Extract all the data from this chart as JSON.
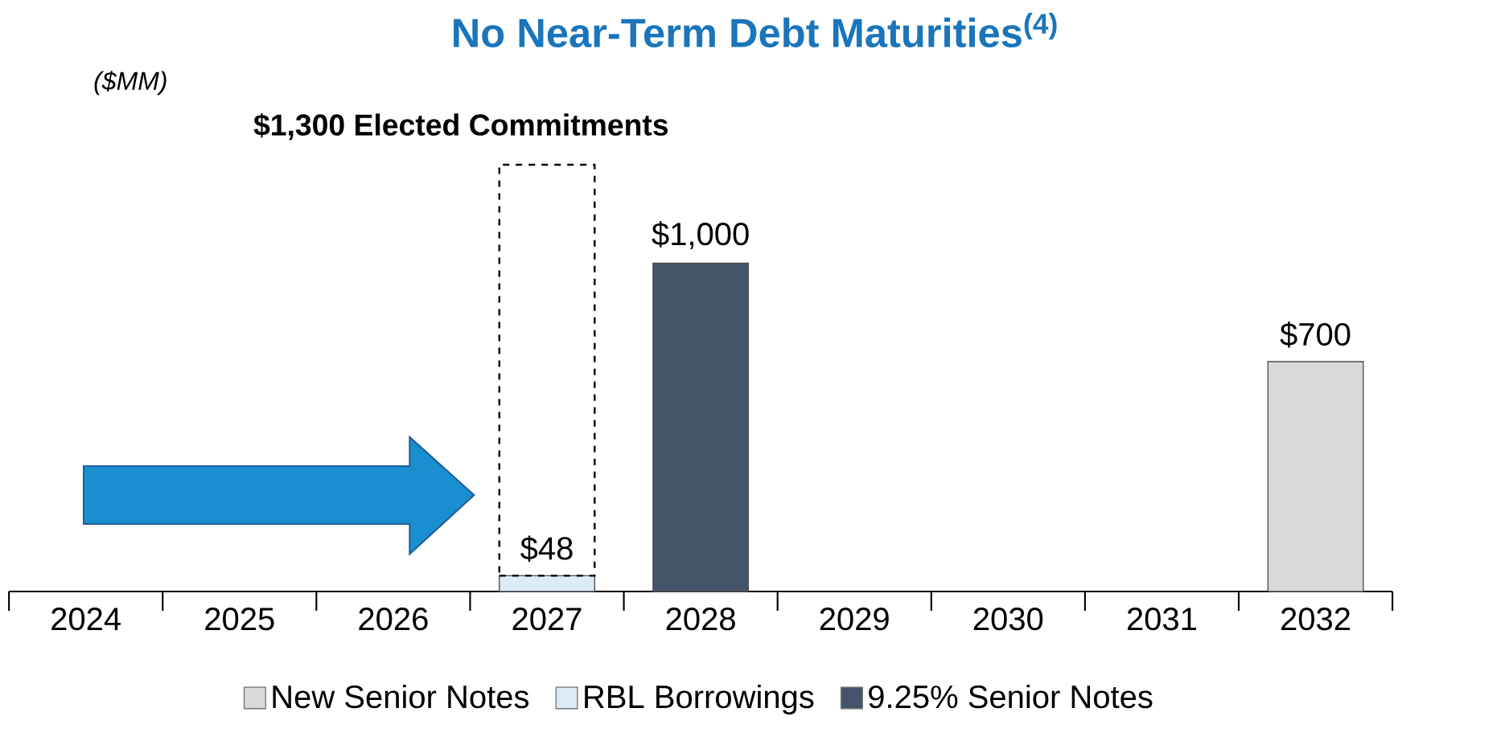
{
  "chart_data": {
    "type": "bar",
    "title": "No Near-Term Debt Maturities$^{(4)}$",
    "stacked": true,
    "legend": "bottom",
    "categories": [
      "2024",
      "2025",
      "2026",
      "2027",
      "2028",
      "2029",
      "2030",
      "2031",
      "2032"
    ],
    "series": [
      {
        "name": "New Senior Notes",
        "color": "#d9d9d9",
        "values": [
          null,
          null,
          null,
          null,
          null,
          null,
          null,
          null,
          700
        ],
        "value_labels": [
          null,
          null,
          null,
          null,
          null,
          null,
          null,
          null,
          "$700"
        ]
      },
      {
        "name": "RBL Borrowings",
        "color": "#ddebf7",
        "values": [
          null,
          null,
          null,
          48,
          null,
          null,
          null,
          null,
          null
        ],
        "value_labels": [
          null,
          null,
          null,
          "$48",
          null,
          null,
          null,
          null,
          null
        ]
      },
      {
        "name": "9.25% Senior Notes",
        "color": "#44546a",
        "values": [
          null,
          null,
          null,
          null,
          1000,
          null,
          null,
          null,
          null
        ],
        "value_labels": [
          null,
          null,
          null,
          null,
          "$1,000",
          null,
          null,
          null,
          null
        ]
      },
      {
        "color": "#000000",
        "line_style": "dashed",
        "values": [
          null,
          null,
          null,
          1252,
          null,
          null,
          null,
          null,
          null
        ]
      }
    ],
    "annotations": [
      "($MM)",
      {
        "text": "$1,300 Elected Commitments",
        "x": "2027",
        "y": 1300
      }
    ]
  }
}
